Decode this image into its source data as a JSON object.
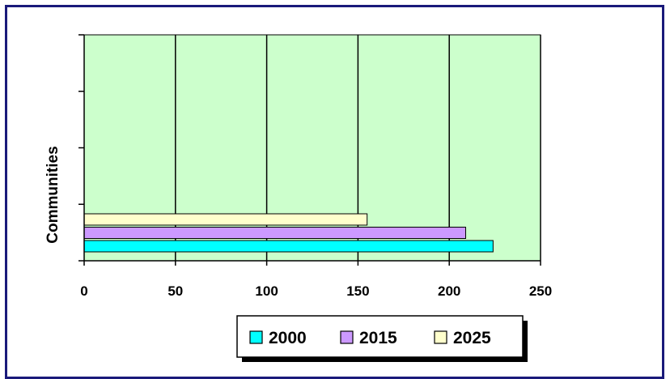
{
  "chart_data": {
    "type": "bar",
    "orientation": "horizontal",
    "ylabel": "Communities",
    "xlabel": "",
    "title": "",
    "xlim": [
      0,
      250
    ],
    "x_ticks": [
      0,
      50,
      100,
      150,
      200,
      250
    ],
    "category_slots": 4,
    "grid": "vertical",
    "legend_position": "bottom",
    "series": [
      {
        "name": "2000",
        "value": 224,
        "color": "#00ffff"
      },
      {
        "name": "2015",
        "value": 209,
        "color": "#cc99ff"
      },
      {
        "name": "2025",
        "value": 155,
        "color": "#ffffcc"
      }
    ],
    "plot_background": "#ccffcc"
  }
}
